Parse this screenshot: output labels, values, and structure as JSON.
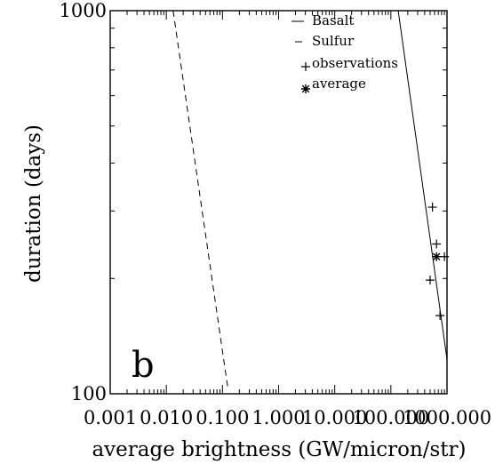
{
  "chart_data": {
    "type": "scatter",
    "title": "",
    "xlabel": "average brightness (GW/micron/str)",
    "ylabel": "duration (days)",
    "x_scale": "log",
    "y_scale": "log",
    "xlim": [
      0.001,
      1000
    ],
    "ylim": [
      100,
      1000
    ],
    "x_tick_values": [
      0.001,
      0.01,
      0.1,
      1,
      10,
      100,
      1000
    ],
    "x_tick_labels": [
      "0.001",
      "0.010",
      "0.100",
      "1.000",
      "10.000",
      "100.000",
      "1000.000"
    ],
    "y_tick_values": [
      100,
      1000
    ],
    "y_tick_labels": [
      "100",
      "1000"
    ],
    "panel_label": "b",
    "grid": false,
    "legend_position": "top-right",
    "legend": [
      {
        "label": "Basalt",
        "marker": "solid-line"
      },
      {
        "label": "Sulfur",
        "marker": "dashed-line"
      },
      {
        "label": "observations",
        "marker": "plus"
      },
      {
        "label": "average",
        "marker": "asterisk"
      }
    ],
    "series": [
      {
        "name": "Basalt",
        "style": "solid",
        "x": [
          135,
          1000
        ],
        "y": [
          1000,
          123
        ]
      },
      {
        "name": "Sulfur",
        "style": "dashed",
        "x": [
          0.0132,
          0.124
        ],
        "y": [
          1000,
          104
        ]
      },
      {
        "name": "observations",
        "marker": "plus",
        "x": [
          550,
          650,
          900,
          500,
          750
        ],
        "y": [
          307,
          246,
          228,
          198,
          160
        ]
      },
      {
        "name": "average",
        "marker": "asterisk",
        "x": [
          650
        ],
        "y": [
          228
        ]
      }
    ]
  }
}
